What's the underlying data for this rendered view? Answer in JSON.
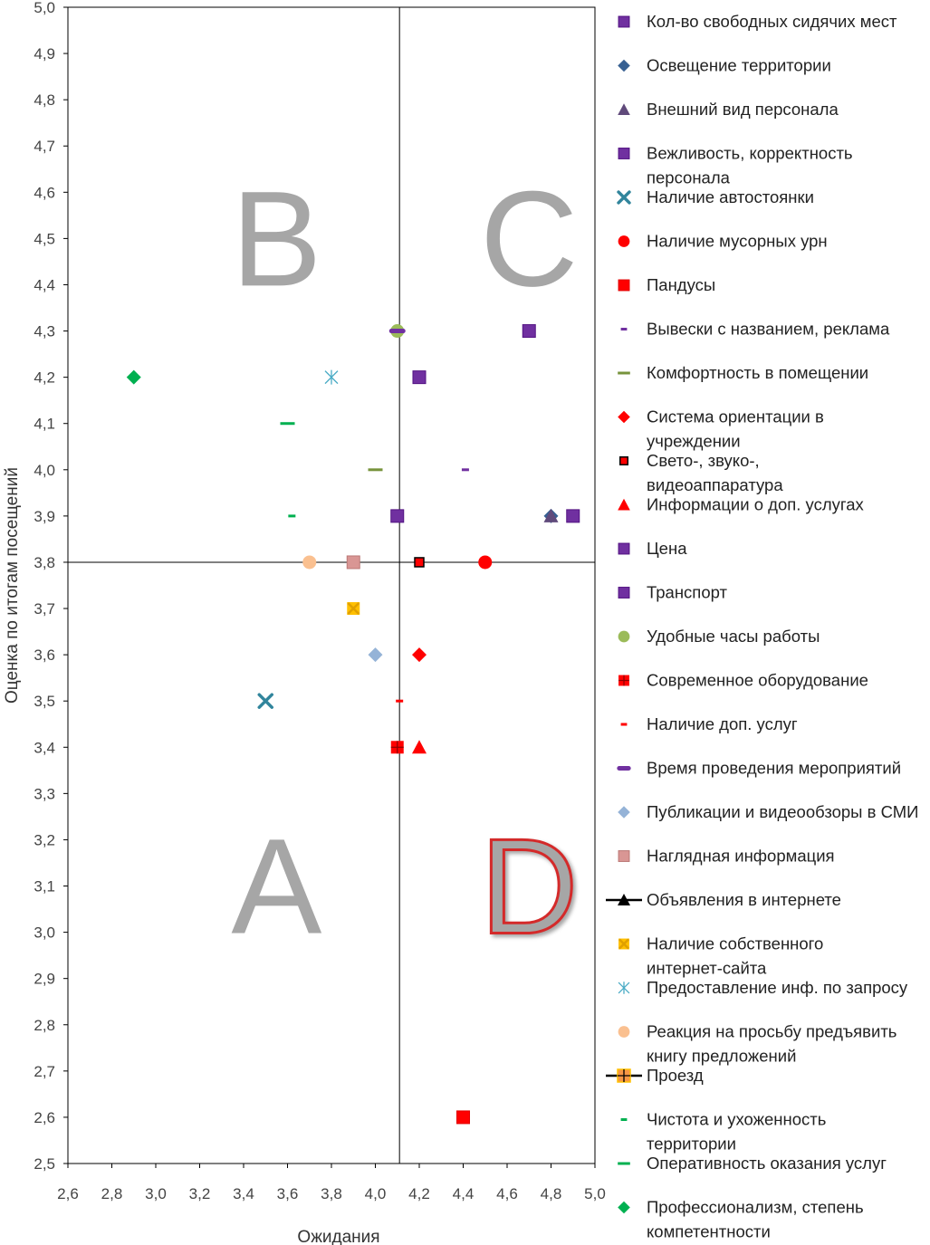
{
  "chart_data": {
    "type": "scatter",
    "xlabel": "Ожидания",
    "ylabel": "Оценка по итогам посещений",
    "xlim": [
      2.6,
      5.0
    ],
    "ylim": [
      2.5,
      5.0
    ],
    "x_ticks": [
      "2,6",
      "2,8",
      "3,0",
      "3,2",
      "3,4",
      "3,6",
      "3,8",
      "4,0",
      "4,2",
      "4,4",
      "4,6",
      "4,8",
      "5,0"
    ],
    "y_ticks": [
      "2,5",
      "2,6",
      "2,7",
      "2,8",
      "2,9",
      "3,0",
      "3,1",
      "3,2",
      "3,3",
      "3,4",
      "3,5",
      "3,6",
      "3,7",
      "3,8",
      "3,9",
      "4,0",
      "4,1",
      "4,2",
      "4,3",
      "4,4",
      "4,5",
      "4,6",
      "4,7",
      "4,8",
      "4,9",
      "5,0"
    ],
    "divider_x": 4.11,
    "divider_y": 3.8,
    "quadrants": [
      {
        "label": "B",
        "x": 3.55,
        "y": 4.5
      },
      {
        "label": "C",
        "x": 4.7,
        "y": 4.5
      },
      {
        "label": "A",
        "x": 3.55,
        "y": 3.1
      },
      {
        "label": "D",
        "x": 4.7,
        "y": 3.1,
        "style": "outlined-red"
      }
    ],
    "legend_position": "right",
    "series": [
      {
        "name": "Кол-во свободных сидячих мест",
        "marker": "square",
        "color": "#7030A0",
        "x": 4.7,
        "y": 4.3
      },
      {
        "name": "Освещение территории",
        "marker": "diamond",
        "color": "#376092",
        "x": 4.8,
        "y": 3.9
      },
      {
        "name": "Внешний вид персонала",
        "marker": "triangle",
        "color": "#604A7B",
        "x": 4.8,
        "y": 3.9
      },
      {
        "name": "Вежливость, корректность персонала",
        "marker": "square",
        "color": "#7030A0",
        "x": 4.9,
        "y": 3.9
      },
      {
        "name": "Наличие автостоянки",
        "marker": "x",
        "color": "#31859C",
        "x": 3.5,
        "y": 3.5
      },
      {
        "name": "Наличие мусорных урн",
        "marker": "circle",
        "color": "#FF0000",
        "x": 4.5,
        "y": 3.8
      },
      {
        "name": "Пандусы",
        "marker": "square",
        "color": "#FF0000",
        "x": 4.4,
        "y": 2.6
      },
      {
        "name": "Вывески с названием, реклама",
        "marker": "dash",
        "color": "#7030A0",
        "x": 4.41,
        "y": 4.0
      },
      {
        "name": "Комфортность в помещении",
        "marker": "dash-long",
        "color": "#77933C",
        "x": 4.0,
        "y": 4.0
      },
      {
        "name": "Система ориентации в учреждении",
        "marker": "diamond",
        "color": "#FF0000",
        "x": 4.2,
        "y": 3.6
      },
      {
        "name": "Свето-, звуко-, видеоаппаратура",
        "marker": "square-outlined",
        "color": "#FF0000",
        "x": 4.2,
        "y": 3.8
      },
      {
        "name": "Информации о доп. услугах",
        "marker": "triangle",
        "color": "#FF0000",
        "x": 4.2,
        "y": 3.4
      },
      {
        "name": "Цена",
        "marker": "square",
        "color": "#7030A0",
        "x": 4.2,
        "y": 4.2
      },
      {
        "name": "Транспорт",
        "marker": "square",
        "color": "#7030A0",
        "x": 4.1,
        "y": 3.9
      },
      {
        "name": "Удобные часы работы",
        "marker": "circle",
        "color": "#9BBB59",
        "x": 4.1,
        "y": 4.3
      },
      {
        "name": "Современное оборудование",
        "marker": "square-cross",
        "color": "#FF0000",
        "x": 4.1,
        "y": 3.4
      },
      {
        "name": "Наличие доп. услуг",
        "marker": "dash",
        "color": "#FF0000",
        "x": 4.11,
        "y": 3.5
      },
      {
        "name": "Время проведения мероприятий",
        "marker": "dash-thick",
        "color": "#7030A0",
        "x": 4.1,
        "y": 4.3
      },
      {
        "name": "Публикации и видеообзоры в СМИ",
        "marker": "diamond",
        "color": "#95B3D7",
        "x": 4.0,
        "y": 3.6
      },
      {
        "name": "Наглядная информация",
        "marker": "square",
        "color": "#D99694",
        "x": 3.9,
        "y": 3.8
      },
      {
        "name": "Объявления в интернете",
        "marker": "line-triangle",
        "color": "#000000"
      },
      {
        "name": "Наличие собственного интернет-сайта",
        "marker": "square-x",
        "color": "#FFC000",
        "x": 3.9,
        "y": 3.7
      },
      {
        "name": "Предоставление инф. по запросу",
        "marker": "star",
        "color": "#4BACC6",
        "x": 3.8,
        "y": 4.2
      },
      {
        "name": "Реакция на просьбу предъявить книгу предложений",
        "marker": "circle",
        "color": "#FAC090",
        "x": 3.7,
        "y": 3.8
      },
      {
        "name": "Проезд",
        "marker": "line-square-plus",
        "color": "#F79646"
      },
      {
        "name": "Чистота и ухоженность территории",
        "marker": "dash",
        "color": "#00B050",
        "x": 3.62,
        "y": 3.9
      },
      {
        "name": "Оперативность оказания услуг",
        "marker": "dash-long",
        "color": "#00B050",
        "x": 3.6,
        "y": 4.1
      },
      {
        "name": "Профессионализм, степень компетентности",
        "marker": "diamond",
        "color": "#00B050",
        "x": 2.9,
        "y": 4.2
      }
    ]
  }
}
